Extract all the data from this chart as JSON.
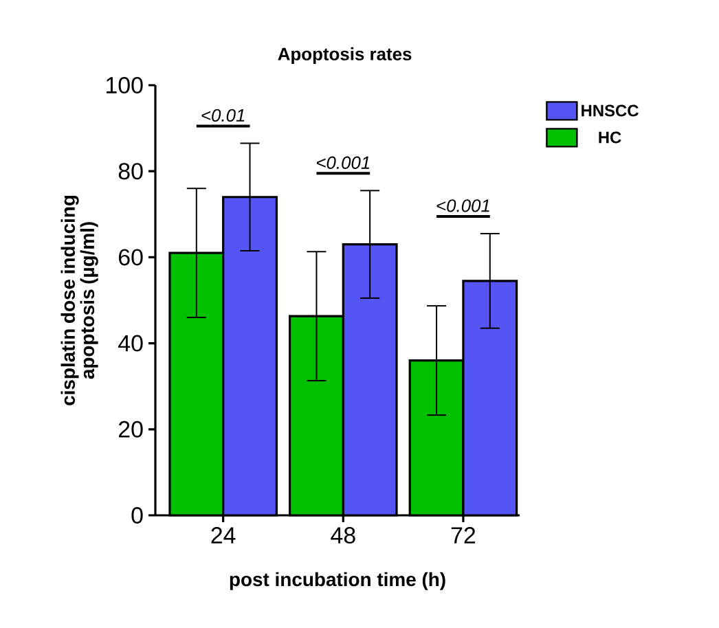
{
  "chart_data": {
    "type": "bar",
    "title": "Apoptosis rates",
    "xlabel": "post incubation time (h)",
    "ylabel": "cisplatin dose inducing apoptosis (µg/ml)",
    "categories": [
      "24",
      "48",
      "72"
    ],
    "series": [
      {
        "name": "HC",
        "color": "#00c000",
        "values": [
          61,
          46.3,
          36
        ],
        "errors": [
          15,
          15,
          12.7
        ]
      },
      {
        "name": "HNSCC",
        "color": "#5555f5",
        "values": [
          74,
          63,
          54.5
        ],
        "errors": [
          12.5,
          12.5,
          11
        ]
      }
    ],
    "ylim": [
      0,
      100
    ],
    "yticks": [
      0,
      20,
      40,
      60,
      80,
      100
    ],
    "legend": "top right",
    "annotations": [
      "<0.01",
      "<0.001",
      "<0.001"
    ]
  }
}
